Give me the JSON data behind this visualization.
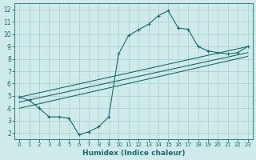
{
  "xlabel": "Humidex (Indice chaleur)",
  "xlim": [
    -0.5,
    23.5
  ],
  "ylim": [
    1.5,
    12.5
  ],
  "xticks": [
    0,
    1,
    2,
    3,
    4,
    5,
    6,
    7,
    8,
    9,
    10,
    11,
    12,
    13,
    14,
    15,
    16,
    17,
    18,
    19,
    20,
    21,
    22,
    23
  ],
  "yticks": [
    2,
    3,
    4,
    5,
    6,
    7,
    8,
    9,
    10,
    11,
    12
  ],
  "bg_color": "#ceeaea",
  "grid_color": "#aacccc",
  "line_color": "#1a6b6b",
  "line1_x": [
    0,
    1,
    2,
    3,
    4,
    5,
    6,
    7,
    8,
    9,
    10,
    11,
    12,
    13,
    14,
    15,
    16,
    17,
    18,
    19,
    20,
    21,
    22,
    23
  ],
  "line1_y": [
    4.9,
    4.65,
    4.0,
    3.3,
    3.3,
    3.2,
    1.85,
    2.1,
    2.5,
    3.3,
    8.4,
    9.9,
    10.35,
    10.8,
    11.5,
    11.9,
    10.5,
    10.4,
    9.0,
    8.65,
    8.5,
    8.4,
    8.5,
    9.0
  ],
  "line2_x": [
    0,
    23
  ],
  "line2_y": [
    4.9,
    9.0
  ],
  "line3_x": [
    0,
    23
  ],
  "line3_y": [
    4.5,
    8.5
  ],
  "line4_x": [
    0,
    23
  ],
  "line4_y": [
    4.0,
    8.2
  ]
}
